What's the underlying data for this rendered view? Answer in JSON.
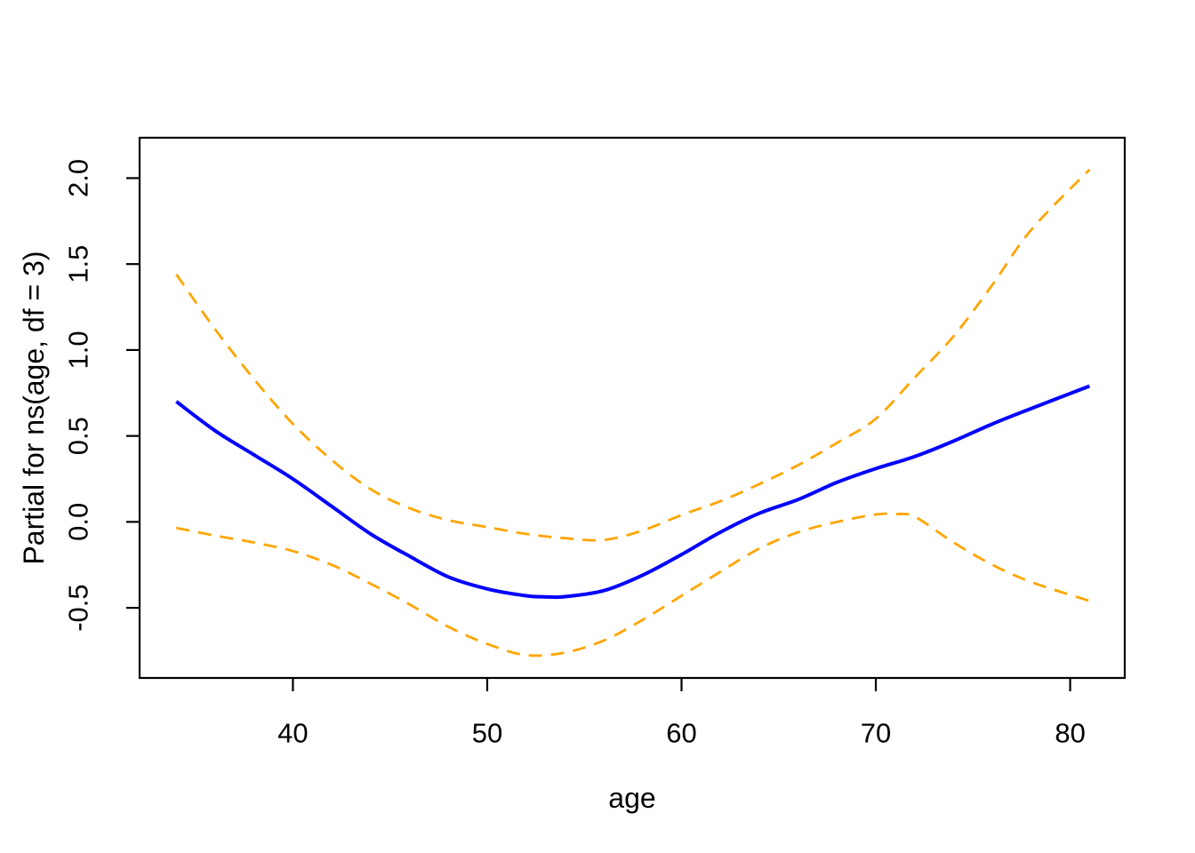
{
  "figure": {
    "background": "#ffffff",
    "xlabel": "age",
    "ylabel": "Partial for ns(age, df = 3)"
  },
  "chart_data": {
    "type": "line",
    "title": "",
    "xlabel": "age",
    "ylabel": "Partial for ns(age, df = 3)",
    "xlim": [
      32.11,
      82.81
    ],
    "ylim": [
      -0.908,
      2.235
    ],
    "x_tick_values": [
      40,
      50,
      60,
      70,
      80
    ],
    "x_tick_labels": [
      "40",
      "50",
      "60",
      "70",
      "80"
    ],
    "y_tick_values": [
      -0.5,
      0.0,
      0.5,
      1.0,
      1.5,
      2.0
    ],
    "y_tick_labels": [
      "-0.5",
      "0.0",
      "0.5",
      "1.0",
      "1.5",
      "2.0"
    ],
    "grid": false,
    "legend_position": "none",
    "box": true,
    "axis_color": "#000000",
    "series": [
      {
        "name": "fitted partial: ns(age, df = 3)",
        "style": "solid",
        "color": "#0000ff",
        "width": 4,
        "x": [
          34,
          36,
          38,
          40,
          42,
          44,
          46,
          48,
          50,
          52,
          53,
          54,
          56,
          58,
          60,
          62,
          64,
          66,
          68,
          70,
          72,
          74,
          76,
          78,
          81
        ],
        "y": [
          0.7,
          0.53,
          0.39,
          0.25,
          0.09,
          -0.07,
          -0.2,
          -0.32,
          -0.39,
          -0.43,
          -0.436,
          -0.435,
          -0.4,
          -0.31,
          -0.19,
          -0.06,
          0.05,
          0.13,
          0.23,
          0.31,
          0.38,
          0.47,
          0.57,
          0.66,
          0.79
        ]
      },
      {
        "name": "upper standard-error band",
        "style": "dashed",
        "color": "#ffa500",
        "width": 2.8,
        "x": [
          34,
          36,
          38,
          40,
          42,
          44,
          46,
          48,
          50,
          52,
          54,
          56,
          58,
          60,
          62,
          64,
          66,
          68,
          70,
          72,
          74,
          76,
          78,
          81
        ],
        "y": [
          1.44,
          1.12,
          0.83,
          0.57,
          0.36,
          0.19,
          0.08,
          0.01,
          -0.03,
          -0.07,
          -0.095,
          -0.105,
          -0.05,
          0.04,
          0.12,
          0.22,
          0.33,
          0.46,
          0.6,
          0.84,
          1.08,
          1.38,
          1.7,
          2.05
        ]
      },
      {
        "name": "lower standard-error band",
        "style": "dashed",
        "color": "#ffa500",
        "width": 2.8,
        "x": [
          34,
          36,
          38,
          40,
          42,
          44,
          46,
          48,
          50,
          52,
          54,
          56,
          58,
          60,
          62,
          64,
          66,
          68,
          70,
          71,
          72,
          74,
          76,
          78,
          81
        ],
        "y": [
          -0.035,
          -0.08,
          -0.12,
          -0.17,
          -0.25,
          -0.36,
          -0.48,
          -0.61,
          -0.71,
          -0.775,
          -0.76,
          -0.69,
          -0.57,
          -0.43,
          -0.29,
          -0.155,
          -0.06,
          0.0,
          0.043,
          0.045,
          0.03,
          -0.12,
          -0.25,
          -0.35,
          -0.46
        ]
      }
    ]
  }
}
